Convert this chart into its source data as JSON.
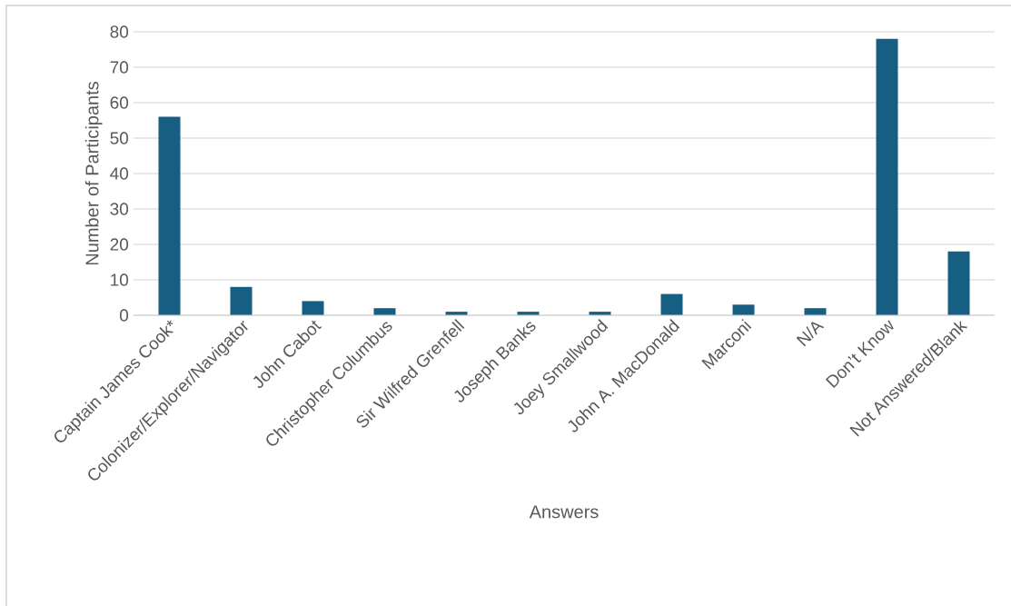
{
  "chart_data": {
    "type": "bar",
    "xlabel": "Answers",
    "ylabel": "Number of Participants",
    "categories": [
      "Captain James Cook*",
      "Colonizer/Explorer/Navigator",
      "John Cabot",
      "Christopher Columbus",
      "Sir Wilfred Grenfell",
      "Joseph Banks",
      "Joey Smallwood",
      "John A. MacDonald",
      "Marconi",
      "N/A",
      "Don’t Know",
      "Not Answered/Blank"
    ],
    "values": [
      56,
      8,
      4,
      2,
      1,
      1,
      1,
      6,
      3,
      2,
      78,
      18
    ],
    "color": "#165e82",
    "ylim": [
      0,
      80
    ],
    "yticks": [
      0,
      10,
      20,
      30,
      40,
      50,
      60,
      70,
      80
    ],
    "grid": "y"
  }
}
